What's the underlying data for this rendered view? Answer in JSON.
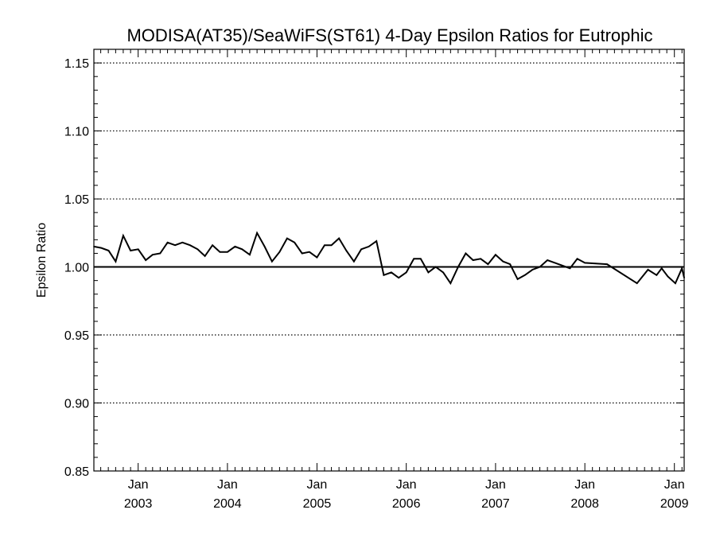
{
  "chart_data": {
    "type": "line",
    "title": "MODISA(AT35)/SeaWiFS(ST61) 4-Day Epsilon Ratios for Eutrophic",
    "xlabel": "",
    "ylabel": "Epsilon Ratio",
    "xlim": [
      "2002-07-04",
      "2009-02-10"
    ],
    "ylim": [
      0.85,
      1.16
    ],
    "grid": "dotted horizontal lines at labeled y ticks",
    "reference_line": {
      "y": 1.0,
      "style": "solid"
    },
    "yticks": [
      "0.85",
      "0.90",
      "0.95",
      "1.00",
      "1.05",
      "1.10",
      "1.15"
    ],
    "ytick_values": [
      0.85,
      0.9,
      0.95,
      1.0,
      1.05,
      1.1,
      1.15
    ],
    "xticks": [
      {
        "month": "Jan",
        "year": "2003",
        "date": "2003-01-01"
      },
      {
        "month": "Jan",
        "year": "2004",
        "date": "2004-01-01"
      },
      {
        "month": "Jan",
        "year": "2005",
        "date": "2005-01-01"
      },
      {
        "month": "Jan",
        "year": "2006",
        "date": "2006-01-01"
      },
      {
        "month": "Jan",
        "year": "2007",
        "date": "2007-01-01"
      },
      {
        "month": "Jan",
        "year": "2008",
        "date": "2008-01-01"
      },
      {
        "month": "Jan",
        "year": "2009",
        "date": "2009-01-01"
      }
    ],
    "series": [
      {
        "color": "#000000",
        "points": [
          [
            "2002-07-04",
            1.015
          ],
          [
            "2002-08-03",
            1.014
          ],
          [
            "2002-09-02",
            1.012
          ],
          [
            "2002-10-01",
            1.004
          ],
          [
            "2002-11-01",
            1.023
          ],
          [
            "2002-12-01",
            1.012
          ],
          [
            "2003-01-01",
            1.013
          ],
          [
            "2003-02-01",
            1.005
          ],
          [
            "2003-03-01",
            1.009
          ],
          [
            "2003-04-01",
            1.01
          ],
          [
            "2003-05-01",
            1.018
          ],
          [
            "2003-06-01",
            1.016
          ],
          [
            "2003-07-01",
            1.018
          ],
          [
            "2003-08-01",
            1.016
          ],
          [
            "2003-09-01",
            1.013
          ],
          [
            "2003-10-01",
            1.008
          ],
          [
            "2003-11-01",
            1.016
          ],
          [
            "2003-12-01",
            1.011
          ],
          [
            "2004-01-01",
            1.011
          ],
          [
            "2004-02-01",
            1.015
          ],
          [
            "2004-03-01",
            1.013
          ],
          [
            "2004-04-01",
            1.009
          ],
          [
            "2004-05-01",
            1.025
          ],
          [
            "2004-06-01",
            1.015
          ],
          [
            "2004-07-01",
            1.004
          ],
          [
            "2004-08-01",
            1.011
          ],
          [
            "2004-09-01",
            1.021
          ],
          [
            "2004-10-01",
            1.018
          ],
          [
            "2004-11-01",
            1.01
          ],
          [
            "2004-12-01",
            1.011
          ],
          [
            "2005-01-01",
            1.007
          ],
          [
            "2005-02-01",
            1.016
          ],
          [
            "2005-03-01",
            1.016
          ],
          [
            "2005-04-01",
            1.021
          ],
          [
            "2005-05-01",
            1.012
          ],
          [
            "2005-06-01",
            1.004
          ],
          [
            "2005-07-01",
            1.013
          ],
          [
            "2005-08-01",
            1.015
          ],
          [
            "2005-09-01",
            1.019
          ],
          [
            "2005-10-01",
            0.994
          ],
          [
            "2005-11-01",
            0.996
          ],
          [
            "2005-12-01",
            0.992
          ],
          [
            "2006-01-01",
            0.996
          ],
          [
            "2006-02-01",
            1.006
          ],
          [
            "2006-03-01",
            1.006
          ],
          [
            "2006-04-01",
            0.996
          ],
          [
            "2006-05-01",
            1.0
          ],
          [
            "2006-06-01",
            0.996
          ],
          [
            "2006-07-01",
            0.988
          ],
          [
            "2006-08-01",
            1.0
          ],
          [
            "2006-09-01",
            1.01
          ],
          [
            "2006-10-01",
            1.005
          ],
          [
            "2006-11-01",
            1.006
          ],
          [
            "2006-12-01",
            1.002
          ],
          [
            "2007-01-01",
            1.009
          ],
          [
            "2007-02-01",
            1.004
          ],
          [
            "2007-03-01",
            1.002
          ],
          [
            "2007-04-01",
            0.991
          ],
          [
            "2007-05-01",
            0.994
          ],
          [
            "2007-06-01",
            0.998
          ],
          [
            "2007-07-01",
            1.0
          ],
          [
            "2007-08-01",
            1.005
          ],
          [
            "2007-09-01",
            1.003
          ],
          [
            "2007-10-01",
            1.001
          ],
          [
            "2007-11-01",
            0.999
          ],
          [
            "2007-12-01",
            1.006
          ],
          [
            "2008-01-01",
            1.003
          ],
          [
            "2008-04-01",
            1.002
          ],
          [
            "2008-08-01",
            0.988
          ],
          [
            "2008-09-15",
            0.998
          ],
          [
            "2008-10-20",
            0.994
          ],
          [
            "2008-11-10",
            0.999
          ],
          [
            "2008-12-05",
            0.993
          ],
          [
            "2009-01-05",
            0.988
          ],
          [
            "2009-02-01",
            0.999
          ],
          [
            "2009-02-10",
            0.992
          ]
        ]
      }
    ]
  }
}
